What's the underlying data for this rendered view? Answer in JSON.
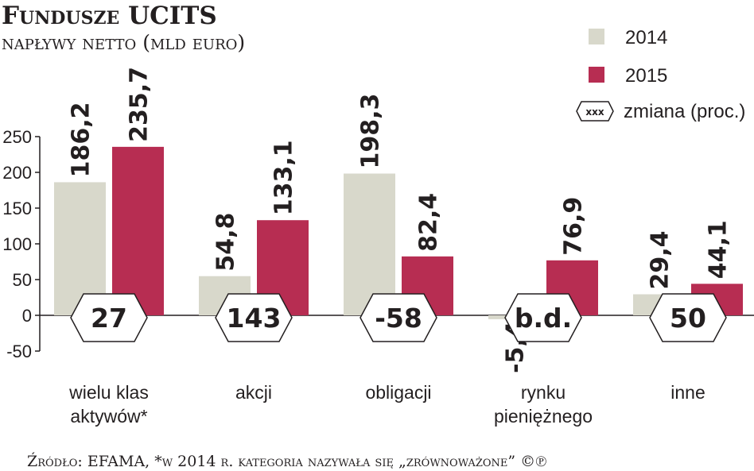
{
  "colors": {
    "series_2014": "#d8d8cb",
    "series_2015": "#b72d52",
    "text": "#231f20",
    "axis": "#231f20"
  },
  "chart_data": {
    "type": "bar",
    "title": "Fundusze UCITS",
    "subtitle": "napływy netto (mld euro)",
    "categories": [
      "wielu klas aktywów*",
      "akcji",
      "obligacji",
      "rynku pieniężnego",
      "inne"
    ],
    "category_lines": [
      [
        "wielu klas",
        "aktywów*"
      ],
      [
        "akcji"
      ],
      [
        "obligacji"
      ],
      [
        "rynku",
        "pieniężnego"
      ],
      [
        "inne"
      ]
    ],
    "series": [
      {
        "name": "2014",
        "values": [
          186.2,
          54.8,
          198.3,
          -5.4,
          29.4
        ],
        "labels": [
          "186,2",
          "54,8",
          "198,3",
          "-5,4",
          "29,4"
        ]
      },
      {
        "name": "2015",
        "values": [
          235.7,
          133.1,
          82.4,
          76.9,
          44.1
        ],
        "labels": [
          "235,7",
          "133,1",
          "82,4",
          "76,9",
          "44,1"
        ]
      }
    ],
    "change_pct": [
      "27",
      "143",
      "-58",
      "b.d.",
      "50"
    ],
    "change_legend_icon": "xxx",
    "change_legend_label": "zmiana (proc.)",
    "yticks": [
      -50,
      0,
      50,
      100,
      150,
      200,
      250
    ],
    "ytick_labels": [
      "-50",
      "0",
      "50",
      "100",
      "150",
      "200",
      "250"
    ],
    "ylim": [
      -50,
      250
    ],
    "grid": false,
    "legend_position": "top-right",
    "source": "Źródło: EFAMA, *w 2014 r. kategoria nazywała się „zrównoważone” ©℗"
  }
}
